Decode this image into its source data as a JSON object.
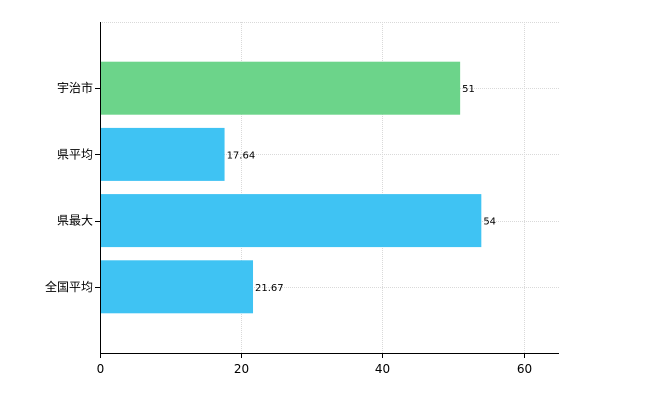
{
  "chart_data": {
    "type": "bar",
    "orientation": "horizontal",
    "categories": [
      "宇治市",
      "県平均",
      "県最大",
      "全国平均"
    ],
    "values": [
      51,
      17.64,
      54,
      21.67
    ],
    "value_labels": [
      "51",
      "17.64",
      "54",
      "21.67"
    ],
    "colors": [
      "#6cd48a",
      "#3fc3f3",
      "#3fc3f3",
      "#3fc3f3"
    ],
    "xlim": [
      0,
      65
    ],
    "x_ticks": [
      0,
      20,
      40,
      60
    ],
    "x_tick_labels": [
      "0",
      "20",
      "40",
      "60"
    ],
    "title": "",
    "xlabel": "",
    "ylabel": "",
    "grid": true,
    "legend": "none"
  }
}
